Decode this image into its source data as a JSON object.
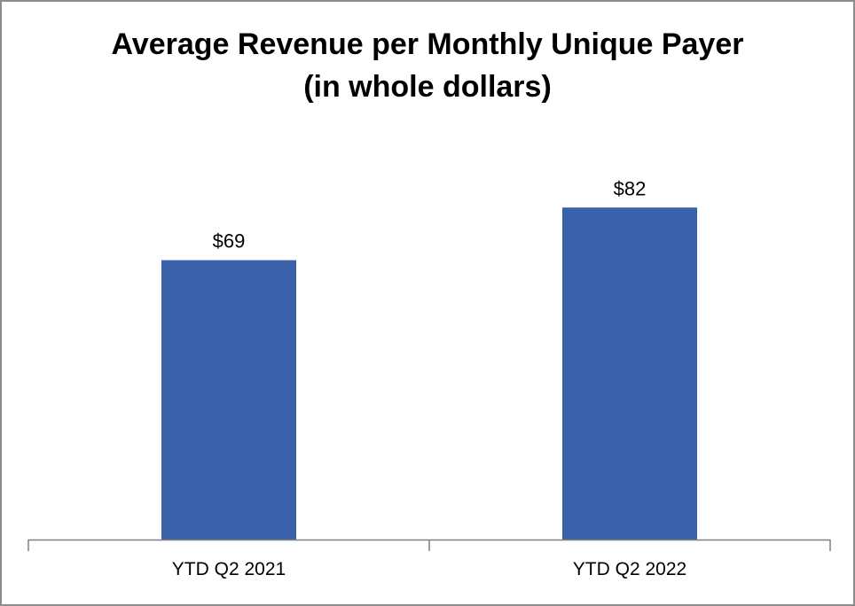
{
  "chart_data": {
    "type": "bar",
    "title_lines": [
      "Average Revenue per Monthly Unique Payer",
      "(in whole dollars)"
    ],
    "categories": [
      "YTD Q2 2021",
      "YTD Q2 2022"
    ],
    "values": [
      69,
      82
    ],
    "value_labels": [
      "$69",
      "$82"
    ],
    "xlabel": "",
    "ylabel": "",
    "grid": false,
    "bar_color": "#3a62aa",
    "axis_color": "#808080"
  }
}
